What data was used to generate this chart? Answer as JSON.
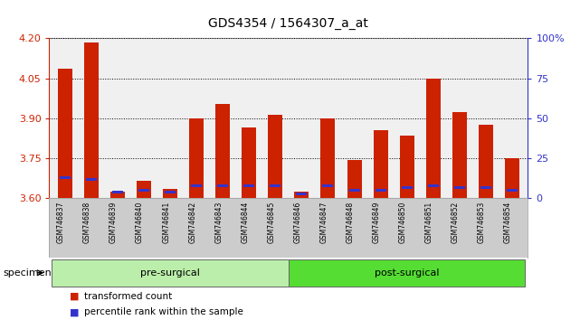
{
  "title": "GDS4354 / 1564307_a_at",
  "samples": [
    "GSM746837",
    "GSM746838",
    "GSM746839",
    "GSM746840",
    "GSM746841",
    "GSM746842",
    "GSM746843",
    "GSM746844",
    "GSM746845",
    "GSM746846",
    "GSM746847",
    "GSM746848",
    "GSM746849",
    "GSM746850",
    "GSM746851",
    "GSM746852",
    "GSM746853",
    "GSM746854"
  ],
  "red_values": [
    4.085,
    4.185,
    3.625,
    3.665,
    3.635,
    3.9,
    3.955,
    3.865,
    3.915,
    3.625,
    3.9,
    3.745,
    3.855,
    3.835,
    4.05,
    3.925,
    3.875,
    3.75
  ],
  "blue_positions": [
    0.13,
    0.12,
    0.04,
    0.05,
    0.04,
    0.08,
    0.08,
    0.08,
    0.08,
    0.03,
    0.08,
    0.05,
    0.05,
    0.07,
    0.08,
    0.07,
    0.07,
    0.05
  ],
  "ymin": 3.6,
  "ymax": 4.2,
  "y_ticks": [
    3.6,
    3.75,
    3.9,
    4.05,
    4.2
  ],
  "y2min": 0,
  "y2max": 100,
  "y2_ticks": [
    0,
    25,
    50,
    75,
    100
  ],
  "y2_tick_labels": [
    "0",
    "25",
    "50",
    "75",
    "100%"
  ],
  "bar_color": "#cc2200",
  "blue_color": "#3333cc",
  "tick_color_left": "#cc2200",
  "tick_color_right": "#3333cc",
  "pre_surgical_count": 9,
  "groups": [
    {
      "label": "pre-surgical",
      "start": 0,
      "end": 9,
      "color": "#bbeeaa"
    },
    {
      "label": "post-surgical",
      "start": 9,
      "end": 18,
      "color": "#55dd33"
    }
  ],
  "bar_width": 0.55,
  "legend": [
    {
      "label": "transformed count",
      "color": "#cc2200"
    },
    {
      "label": "percentile rank within the sample",
      "color": "#3333cc"
    }
  ],
  "plot_bg": "#f0f0f0",
  "title_fontsize": 10,
  "tick_fontsize": 8,
  "label_bg": "#cccccc"
}
